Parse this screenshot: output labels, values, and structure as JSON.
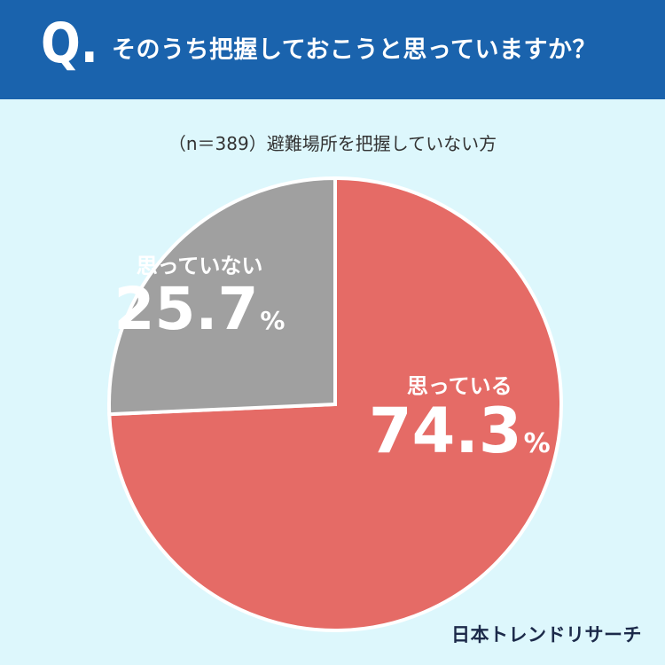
{
  "header": {
    "q_mark": "Q.",
    "question": "そのうち把握しておこうと思っていますか？"
  },
  "subtitle": "（n＝389）避難場所を把握していない方",
  "chart_data": {
    "type": "pie",
    "title": "そのうち把握しておこうと思っていますか？",
    "subtitle": "（n＝389）避難場所を把握していない方",
    "slices": [
      {
        "label": "思っている",
        "value": 74.3,
        "display": "74.3",
        "unit": "%",
        "color": "#e56b66"
      },
      {
        "label": "思っていない",
        "value": 25.7,
        "display": "25.7",
        "unit": "%",
        "color": "#a0a0a0"
      }
    ],
    "start": "12 o'clock",
    "direction": "clockwise"
  },
  "logo": "日本トレンドリサーチ"
}
